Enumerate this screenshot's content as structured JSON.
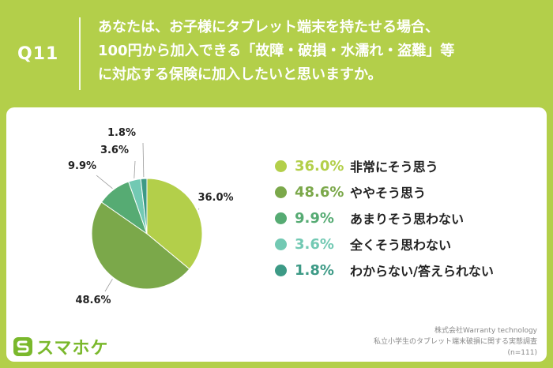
{
  "question": {
    "label": "Q11",
    "lines": [
      "あなたは、お子様にタブレット端末を持たせる場合、",
      "100円から加入できる「故障・破損・水濡れ・盗難」等",
      "に対応する保険に加入したいと思いますか。"
    ]
  },
  "colors": {
    "background": "#b3cf4a",
    "card": "#ffffff"
  },
  "chart_data": {
    "type": "pie",
    "start": "top, clockwise",
    "slices": [
      {
        "label": "非常にそう思う",
        "value": 36.0,
        "value_label": "36.0%",
        "color": "#b3cf4a"
      },
      {
        "label": "ややそう思う",
        "value": 48.6,
        "value_label": "48.6%",
        "color": "#7ba84a"
      },
      {
        "label": "あまりそう思わない",
        "value": 9.9,
        "value_label": "9.9%",
        "color": "#56ab73"
      },
      {
        "label": "全くそう思わない",
        "value": 3.6,
        "value_label": "3.6%",
        "color": "#72c9b3"
      },
      {
        "label": "わからない/答えられない",
        "value": 1.8,
        "value_label": "1.8%",
        "color": "#3d9a86"
      }
    ]
  },
  "logo": {
    "text": "スマホケ"
  },
  "source": {
    "company": "株式会社Warranty technology",
    "survey": "私立小学生のタブレット端末破損に関する実態調査",
    "n": "(n=111)"
  }
}
